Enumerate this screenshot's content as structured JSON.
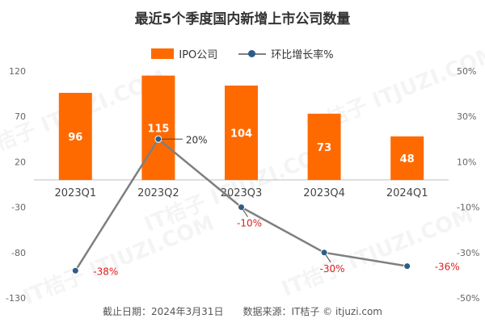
{
  "chart_data": {
    "type": "bar+line",
    "title": "最近5个季度国内新增上市公司数量",
    "categories": [
      "2023Q1",
      "2023Q2",
      "2023Q3",
      "2023Q4",
      "2024Q1"
    ],
    "series": [
      {
        "name": "IPO公司",
        "type": "bar",
        "axis": "left",
        "values": [
          96,
          115,
          104,
          73,
          48
        ],
        "labels": [
          "96",
          "115",
          "104",
          "73",
          "48"
        ]
      },
      {
        "name": "环比增长率%",
        "type": "line",
        "axis": "right",
        "values": [
          -38,
          20,
          -10,
          -30,
          -36
        ],
        "labels": [
          "-38%",
          "20%",
          "-10%",
          "-30%",
          "-36%"
        ]
      }
    ],
    "y_left": {
      "range": [
        -130,
        120
      ],
      "ticks": [
        "120",
        "70",
        "20",
        "-30",
        "-80",
        "-130"
      ]
    },
    "y_right": {
      "range": [
        -50,
        50
      ],
      "ticks": [
        "50%",
        "30%",
        "10%",
        "-10%",
        "-30%",
        "-50%"
      ]
    },
    "legend_position": "top-center",
    "grid": false,
    "colors": {
      "bar": "#FF6A00",
      "line": "#7F7F7F",
      "marker": "#2E5C8A",
      "negative_label": "#E02020",
      "positive_label": "#333333"
    }
  },
  "watermark": "IT桔子 ITJUZI.COM",
  "footer": "截止日期：2024年3月31日　　数据来源：IT桔子 © itjuzi.com"
}
